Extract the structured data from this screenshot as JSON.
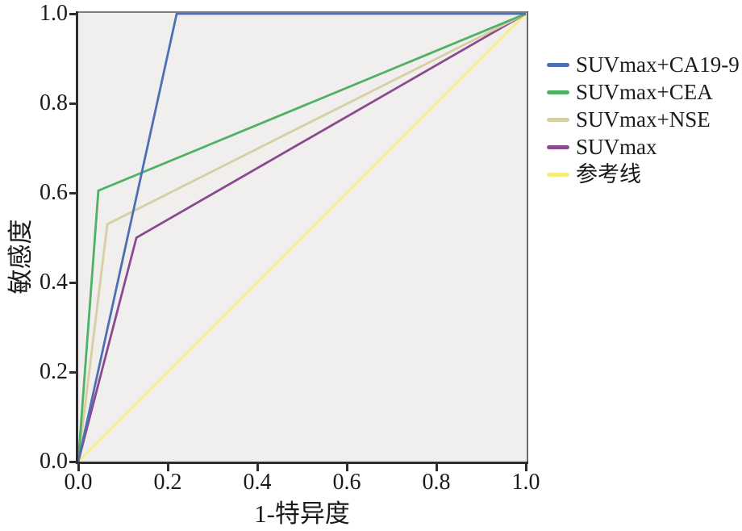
{
  "figure": {
    "plot_background": "#f0efee",
    "frame_gray": "#7e7e7e",
    "axis_dark": "#2e2e2e"
  },
  "chart_data": {
    "type": "line",
    "subtype": "roc-curve",
    "title": "",
    "xlabel": "1-特异度",
    "ylabel": "敏感度",
    "xlim": [
      0,
      1
    ],
    "ylim": [
      0,
      1
    ],
    "x_ticks": [
      "0.0",
      "0.2",
      "0.4",
      "0.6",
      "0.8",
      "1.0"
    ],
    "y_ticks": [
      "0.0",
      "0.2",
      "0.4",
      "0.6",
      "0.8",
      "1.0"
    ],
    "grid": false,
    "legend_position": "right",
    "series": [
      {
        "name": "SUVmax+CA19-9",
        "color": "#4e6fb1",
        "points": [
          [
            0,
            0
          ],
          [
            0.22,
            1.0
          ],
          [
            1,
            1
          ]
        ]
      },
      {
        "name": "SUVmax+CEA",
        "color": "#4fb163",
        "points": [
          [
            0,
            0
          ],
          [
            0.045,
            0.605
          ],
          [
            1,
            1
          ]
        ]
      },
      {
        "name": "SUVmax+NSE",
        "color": "#d6cfa2",
        "points": [
          [
            0,
            0
          ],
          [
            0.065,
            0.53
          ],
          [
            1,
            1
          ]
        ]
      },
      {
        "name": "SUVmax",
        "color": "#8a4a8f",
        "points": [
          [
            0,
            0
          ],
          [
            0.13,
            0.5
          ],
          [
            1,
            1
          ]
        ]
      },
      {
        "name": "参考线",
        "color": "#f5f07e",
        "points": [
          [
            0,
            0
          ],
          [
            1,
            1
          ]
        ]
      }
    ]
  }
}
